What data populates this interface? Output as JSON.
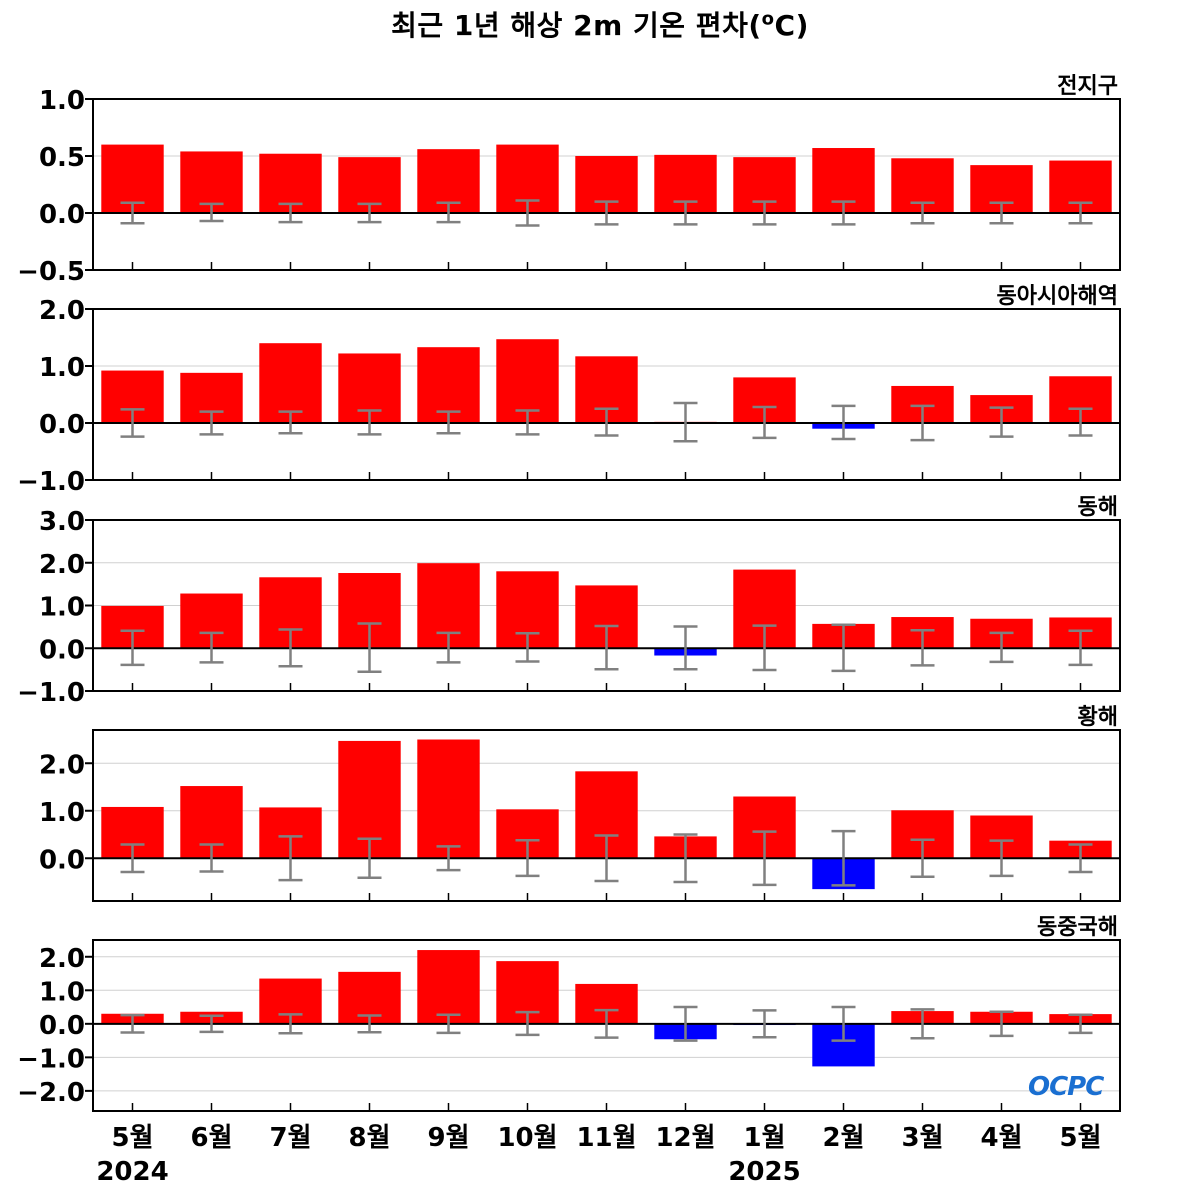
{
  "title_parts": {
    "main": "최근 1년 해상 2m 기온 편차(",
    "sup": "o",
    "tail": "C)"
  },
  "colors": {
    "positive": "#ff0000",
    "negative": "#0000ff",
    "errorbar": "#808080",
    "grid": "#d0d0d0",
    "zero_line": "#000000"
  },
  "logo": "OCPC",
  "chart_data": {
    "type": "bar",
    "categories": [
      "5월",
      "6월",
      "7월",
      "8월",
      "9월",
      "10월",
      "11월",
      "12월",
      "1월",
      "2월",
      "3월",
      "4월",
      "5월"
    ],
    "year_labels": [
      {
        "label": "2024",
        "at_category": 0
      },
      {
        "label": "2025",
        "at_category": 8
      }
    ],
    "grid": true,
    "panels": [
      {
        "name": "전지구",
        "ylim": [
          -0.5,
          1.0
        ],
        "yticks": [
          -0.5,
          0.0,
          0.5,
          1.0
        ],
        "ytick_labels": [
          "−0.5",
          "0.0",
          "0.5",
          "1.0"
        ],
        "values": [
          0.6,
          0.54,
          0.52,
          0.49,
          0.56,
          0.6,
          0.5,
          0.51,
          0.49,
          0.57,
          0.48,
          0.42,
          0.46
        ],
        "error_upper": [
          0.09,
          0.08,
          0.08,
          0.08,
          0.09,
          0.11,
          0.1,
          0.1,
          0.1,
          0.1,
          0.09,
          0.09,
          0.09
        ],
        "error_lower": [
          -0.09,
          -0.07,
          -0.08,
          -0.08,
          -0.08,
          -0.11,
          -0.1,
          -0.1,
          -0.1,
          -0.1,
          -0.09,
          -0.09,
          -0.09
        ]
      },
      {
        "name": "동아시아해역",
        "ylim": [
          -1.0,
          2.0
        ],
        "yticks": [
          -1.0,
          0.0,
          1.0,
          2.0
        ],
        "ytick_labels": [
          "−1.0",
          "0.0",
          "1.0",
          "2.0"
        ],
        "values": [
          0.92,
          0.88,
          1.4,
          1.22,
          1.33,
          1.47,
          1.17,
          0.02,
          0.8,
          -0.1,
          0.65,
          0.49,
          0.82
        ],
        "error_upper": [
          0.24,
          0.2,
          0.2,
          0.22,
          0.2,
          0.22,
          0.25,
          0.35,
          0.28,
          0.3,
          0.3,
          0.27,
          0.25
        ],
        "error_lower": [
          -0.24,
          -0.2,
          -0.18,
          -0.2,
          -0.18,
          -0.2,
          -0.22,
          -0.32,
          -0.26,
          -0.28,
          -0.3,
          -0.24,
          -0.22
        ]
      },
      {
        "name": "동해",
        "ylim": [
          -1.0,
          3.0
        ],
        "yticks": [
          -1.0,
          0.0,
          1.0,
          2.0,
          3.0
        ],
        "ytick_labels": [
          "−1.0",
          "0.0",
          "1.0",
          "2.0",
          "3.0"
        ],
        "values": [
          0.99,
          1.28,
          1.66,
          1.76,
          1.99,
          1.8,
          1.47,
          -0.17,
          1.84,
          0.57,
          0.73,
          0.69,
          0.72
        ],
        "error_upper": [
          0.41,
          0.36,
          0.44,
          0.58,
          0.36,
          0.35,
          0.52,
          0.51,
          0.53,
          0.55,
          0.42,
          0.36,
          0.41
        ],
        "error_lower": [
          -0.39,
          -0.33,
          -0.42,
          -0.55,
          -0.33,
          -0.31,
          -0.49,
          -0.49,
          -0.51,
          -0.53,
          -0.4,
          -0.32,
          -0.39
        ]
      },
      {
        "name": "황해",
        "ylim": [
          -0.9,
          2.7
        ],
        "yticks": [
          0.0,
          1.0,
          2.0
        ],
        "ytick_labels": [
          "0.0",
          "1.0",
          "2.0"
        ],
        "values": [
          1.08,
          1.52,
          1.07,
          2.47,
          2.5,
          1.03,
          1.83,
          0.46,
          1.3,
          -0.65,
          1.01,
          0.9,
          0.37
        ],
        "error_upper": [
          0.29,
          0.29,
          0.46,
          0.41,
          0.25,
          0.38,
          0.48,
          0.5,
          0.56,
          0.57,
          0.39,
          0.37,
          0.29
        ],
        "error_lower": [
          -0.29,
          -0.28,
          -0.46,
          -0.41,
          -0.25,
          -0.37,
          -0.48,
          -0.5,
          -0.56,
          -0.57,
          -0.39,
          -0.37,
          -0.29
        ]
      },
      {
        "name": "동중국해",
        "ylim": [
          -2.6,
          2.5
        ],
        "yticks": [
          -2.0,
          -1.0,
          0.0,
          1.0,
          2.0
        ],
        "ytick_labels": [
          "−2.0",
          "−1.0",
          "0.0",
          "1.0",
          "2.0"
        ],
        "values": [
          0.3,
          0.36,
          1.35,
          1.55,
          2.2,
          1.87,
          1.19,
          -0.46,
          -0.03,
          -1.27,
          0.38,
          0.36,
          0.29
        ],
        "error_upper": [
          0.26,
          0.24,
          0.28,
          0.25,
          0.27,
          0.35,
          0.41,
          0.5,
          0.4,
          0.5,
          0.43,
          0.36,
          0.27
        ],
        "error_lower": [
          -0.26,
          -0.24,
          -0.28,
          -0.25,
          -0.27,
          -0.33,
          -0.41,
          -0.5,
          -0.4,
          -0.5,
          -0.43,
          -0.36,
          -0.27
        ]
      }
    ]
  }
}
